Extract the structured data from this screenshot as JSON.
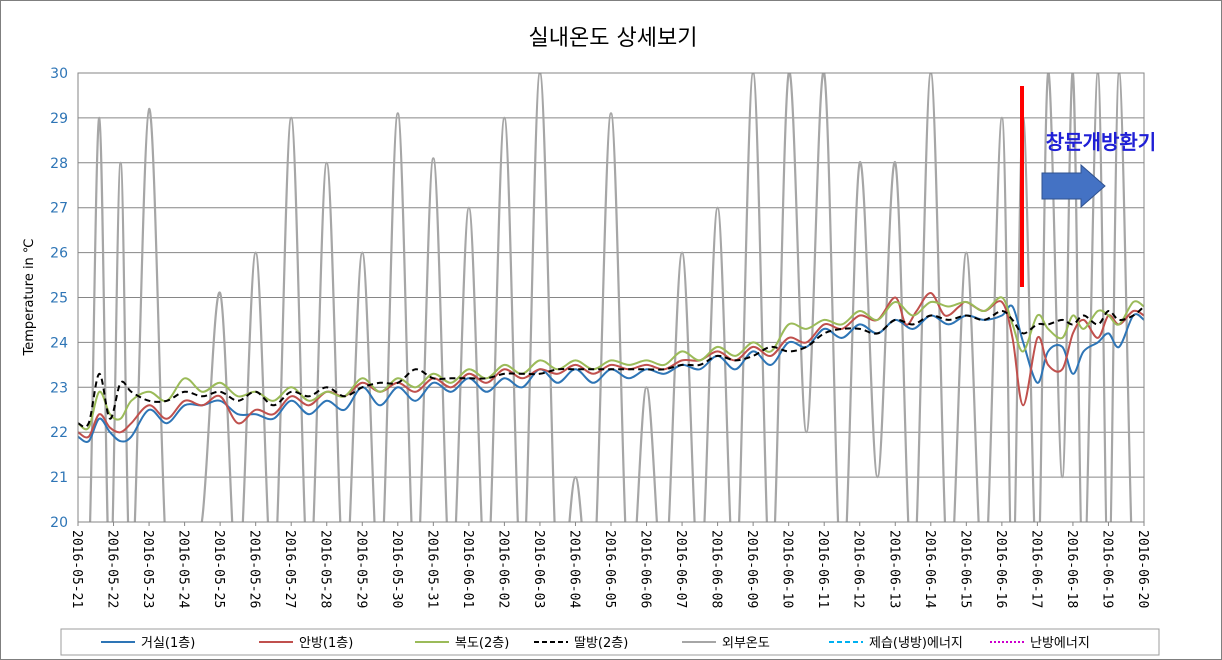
{
  "chart_data": {
    "type": "line",
    "title": "실내온도 상세보기",
    "ylabel": "Temperature in ℃",
    "xlabel": "",
    "ylim": [
      20,
      30
    ],
    "yticks": [
      "20",
      "21",
      "22",
      "23",
      "24",
      "25",
      "26",
      "27",
      "28",
      "29",
      "30"
    ],
    "grid": "horizontal",
    "legend_position": "bottom",
    "categories": [
      "2016-05-21",
      "2016-05-22",
      "2016-05-23",
      "2016-05-24",
      "2016-05-25",
      "2016-05-26",
      "2016-05-27",
      "2016-05-28",
      "2016-05-29",
      "2016-05-30",
      "2016-05-31",
      "2016-06-01",
      "2016-06-02",
      "2016-06-03",
      "2016-06-04",
      "2016-06-05",
      "2016-06-06",
      "2016-06-07",
      "2016-06-08",
      "2016-06-09",
      "2016-06-10",
      "2016-06-11",
      "2016-06-12",
      "2016-06-13",
      "2016-06-14",
      "2016-06-15",
      "2016-06-16",
      "2016-06-17",
      "2016-06-18",
      "2016-06-19",
      "2016-06-20"
    ],
    "series": [
      {
        "name": "거실(1층)",
        "color": "#2e75b6",
        "dash": "solid",
        "x": [
          0,
          0.3,
          0.6,
          0.9,
          1.2,
          1.5,
          2,
          2.5,
          3,
          3.5,
          4,
          4.5,
          5,
          5.5,
          6,
          6.5,
          7,
          7.5,
          8,
          8.5,
          9,
          9.5,
          10,
          10.5,
          11,
          11.5,
          12,
          12.5,
          13,
          13.5,
          14,
          14.5,
          15,
          15.5,
          16,
          16.5,
          17,
          17.5,
          18,
          18.5,
          19,
          19.5,
          20,
          20.5,
          21,
          21.5,
          22,
          22.5,
          23,
          23.5,
          24,
          24.5,
          25,
          25.5,
          26,
          26.3,
          26.6,
          27,
          27.3,
          27.7,
          28,
          28.3,
          28.7,
          29,
          29.3,
          29.7,
          30
        ],
        "y": [
          21.9,
          21.8,
          22.3,
          22.0,
          21.8,
          21.9,
          22.5,
          22.2,
          22.6,
          22.6,
          22.7,
          22.4,
          22.4,
          22.3,
          22.7,
          22.4,
          22.7,
          22.5,
          23.0,
          22.6,
          23.0,
          22.7,
          23.1,
          22.9,
          23.2,
          22.9,
          23.2,
          23.0,
          23.4,
          23.1,
          23.4,
          23.1,
          23.4,
          23.2,
          23.4,
          23.3,
          23.5,
          23.4,
          23.7,
          23.4,
          23.8,
          23.5,
          24.0,
          23.9,
          24.3,
          24.1,
          24.4,
          24.2,
          24.5,
          24.3,
          24.6,
          24.4,
          24.6,
          24.5,
          24.6,
          24.8,
          24.0,
          23.1,
          23.8,
          23.9,
          23.3,
          23.8,
          24.0,
          24.2,
          23.9,
          24.6,
          24.5
        ]
      },
      {
        "name": "안방(1층)",
        "color": "#c0504d",
        "dash": "solid",
        "x": [
          0,
          0.3,
          0.6,
          0.9,
          1.2,
          1.5,
          2,
          2.5,
          3,
          3.5,
          4,
          4.5,
          5,
          5.5,
          6,
          6.5,
          7,
          7.5,
          8,
          8.5,
          9,
          9.5,
          10,
          10.5,
          11,
          11.5,
          12,
          12.5,
          13,
          13.5,
          14,
          14.5,
          15,
          15.5,
          16,
          16.5,
          17,
          17.5,
          18,
          18.5,
          19,
          19.5,
          20,
          20.5,
          21,
          21.5,
          22,
          22.5,
          23,
          23.3,
          23.6,
          24,
          24.4,
          24.8,
          25,
          25.5,
          26,
          26.3,
          26.6,
          27,
          27.3,
          27.7,
          28,
          28.3,
          28.7,
          29,
          29.3,
          29.7,
          30
        ],
        "y": [
          22.0,
          21.9,
          22.4,
          22.1,
          22.0,
          22.2,
          22.6,
          22.3,
          22.7,
          22.6,
          22.8,
          22.2,
          22.5,
          22.4,
          22.8,
          22.6,
          22.9,
          22.8,
          23.1,
          22.9,
          23.1,
          22.9,
          23.2,
          23.0,
          23.3,
          23.1,
          23.4,
          23.2,
          23.4,
          23.3,
          23.5,
          23.3,
          23.5,
          23.4,
          23.5,
          23.4,
          23.6,
          23.6,
          23.8,
          23.6,
          23.9,
          23.7,
          24.1,
          24.0,
          24.4,
          24.3,
          24.6,
          24.5,
          25.0,
          24.4,
          24.7,
          25.1,
          24.6,
          24.8,
          24.9,
          24.7,
          24.9,
          24.1,
          22.6,
          24.1,
          23.5,
          23.4,
          24.2,
          24.5,
          24.1,
          24.6,
          24.4,
          24.7,
          24.6
        ]
      },
      {
        "name": "복도(2층)",
        "color": "#9bbb59",
        "dash": "solid",
        "x": [
          0,
          0.3,
          0.6,
          0.9,
          1.2,
          1.5,
          2,
          2.5,
          3,
          3.5,
          4,
          4.5,
          5,
          5.5,
          6,
          6.5,
          7,
          7.5,
          8,
          8.5,
          9,
          9.5,
          10,
          10.5,
          11,
          11.5,
          12,
          12.5,
          13,
          13.5,
          14,
          14.5,
          15,
          15.5,
          16,
          16.5,
          17,
          17.5,
          18,
          18.5,
          19,
          19.5,
          20,
          20.5,
          21,
          21.5,
          22,
          22.5,
          23,
          23.5,
          24,
          24.5,
          25,
          25.5,
          26,
          26.3,
          26.6,
          27,
          27.3,
          27.7,
          28,
          28.3,
          28.7,
          29,
          29.3,
          29.7,
          30
        ],
        "y": [
          22.2,
          22.1,
          22.9,
          22.4,
          22.3,
          22.7,
          22.9,
          22.7,
          23.2,
          22.9,
          23.1,
          22.8,
          22.9,
          22.7,
          23.0,
          22.7,
          22.9,
          22.8,
          23.2,
          22.9,
          23.2,
          23.0,
          23.3,
          23.1,
          23.4,
          23.2,
          23.5,
          23.3,
          23.6,
          23.4,
          23.6,
          23.4,
          23.6,
          23.5,
          23.6,
          23.5,
          23.8,
          23.6,
          23.9,
          23.7,
          24.0,
          23.8,
          24.4,
          24.3,
          24.5,
          24.4,
          24.7,
          24.5,
          24.9,
          24.6,
          24.9,
          24.8,
          24.9,
          24.7,
          25.0,
          24.4,
          23.8,
          24.6,
          24.3,
          24.1,
          24.6,
          24.3,
          24.7,
          24.6,
          24.4,
          24.9,
          24.8
        ]
      },
      {
        "name": "딸방(2층)",
        "color": "#000000",
        "dash": "dashed",
        "x": [
          0,
          0.3,
          0.6,
          0.9,
          1.2,
          1.5,
          2,
          2.5,
          3,
          3.5,
          4,
          4.5,
          5,
          5.5,
          6,
          6.5,
          7,
          7.5,
          8,
          8.5,
          9,
          9.5,
          10,
          10.5,
          11,
          11.5,
          12,
          12.5,
          13,
          13.5,
          14,
          14.5,
          15,
          15.5,
          16,
          16.5,
          17,
          17.5,
          18,
          18.5,
          19,
          19.5,
          20,
          20.5,
          21,
          21.5,
          22,
          22.5,
          23,
          23.5,
          24,
          24.5,
          25,
          25.5,
          26,
          26.3,
          26.6,
          27,
          27.3,
          27.7,
          28,
          28.3,
          28.7,
          29,
          29.3,
          29.7,
          30
        ],
        "y": [
          22.2,
          22.2,
          23.3,
          22.3,
          23.1,
          22.9,
          22.7,
          22.7,
          22.9,
          22.8,
          22.9,
          22.7,
          22.9,
          22.6,
          22.9,
          22.8,
          23.0,
          22.8,
          23.0,
          23.1,
          23.1,
          23.4,
          23.2,
          23.2,
          23.2,
          23.2,
          23.3,
          23.3,
          23.3,
          23.4,
          23.4,
          23.4,
          23.4,
          23.4,
          23.4,
          23.4,
          23.5,
          23.5,
          23.7,
          23.6,
          23.7,
          23.9,
          23.8,
          23.9,
          24.2,
          24.3,
          24.3,
          24.2,
          24.5,
          24.4,
          24.6,
          24.5,
          24.6,
          24.5,
          24.7,
          24.5,
          24.2,
          24.4,
          24.4,
          24.5,
          24.4,
          24.6,
          24.4,
          24.7,
          24.5,
          24.6,
          24.8
        ]
      },
      {
        "name": "외부온도",
        "color": "#a6a6a6",
        "dash": "solid",
        "x": [
          0,
          0.3,
          0.6,
          0.9,
          1.2,
          1.5,
          2,
          2.5,
          3,
          3.5,
          4,
          4.5,
          5,
          5.5,
          6,
          6.5,
          7,
          7.5,
          8,
          8.5,
          9,
          9.5,
          10,
          10.5,
          11,
          11.5,
          12,
          12.5,
          13,
          13.5,
          14,
          14.5,
          15,
          15.5,
          16,
          16.5,
          17,
          17.5,
          18,
          18.5,
          19,
          19.5,
          20,
          20.5,
          21,
          21.5,
          22,
          22.5,
          23,
          23.5,
          24,
          24.5,
          25,
          25.5,
          26,
          26.3,
          26.6,
          27,
          27.3,
          27.7,
          28,
          28.3,
          28.7,
          29,
          29.3,
          29.7,
          30
        ],
        "y": [
          20.0,
          19.0,
          29.0,
          18.5,
          28.0,
          18.5,
          29.2,
          19.0,
          18.5,
          20.1,
          25.1,
          18.5,
          26.0,
          18.5,
          29.0,
          18.5,
          28.0,
          18.5,
          26.0,
          18.5,
          29.1,
          18.5,
          28.1,
          18.5,
          27.0,
          18.5,
          29.0,
          18.5,
          30.0,
          18.5,
          21.0,
          18.5,
          29.1,
          18.5,
          23.0,
          18.5,
          26.0,
          18.5,
          27.0,
          18.5,
          30.0,
          18.5,
          30.0,
          22.0,
          30.0,
          18.5,
          28.0,
          21.0,
          28.0,
          18.5,
          30.0,
          18.5,
          26.0,
          18.5,
          29.0,
          18.5,
          29.0,
          18.5,
          30.0,
          21.0,
          30.0,
          18.5,
          30.0,
          18.5,
          30.0,
          18.5,
          20.0
        ]
      },
      {
        "name": "제습(냉방)에너지",
        "color": "#00b0f0",
        "dash": "dashed",
        "x": [],
        "y": []
      },
      {
        "name": "난방에너지",
        "color": "#cc00cc",
        "dash": "dotted",
        "x": [],
        "y": []
      }
    ],
    "annotations": [
      {
        "text": "창문개방환기",
        "color": "#1f1fd6"
      }
    ],
    "marker_color": "#ff0000",
    "arrow_color": "#4472c4"
  }
}
